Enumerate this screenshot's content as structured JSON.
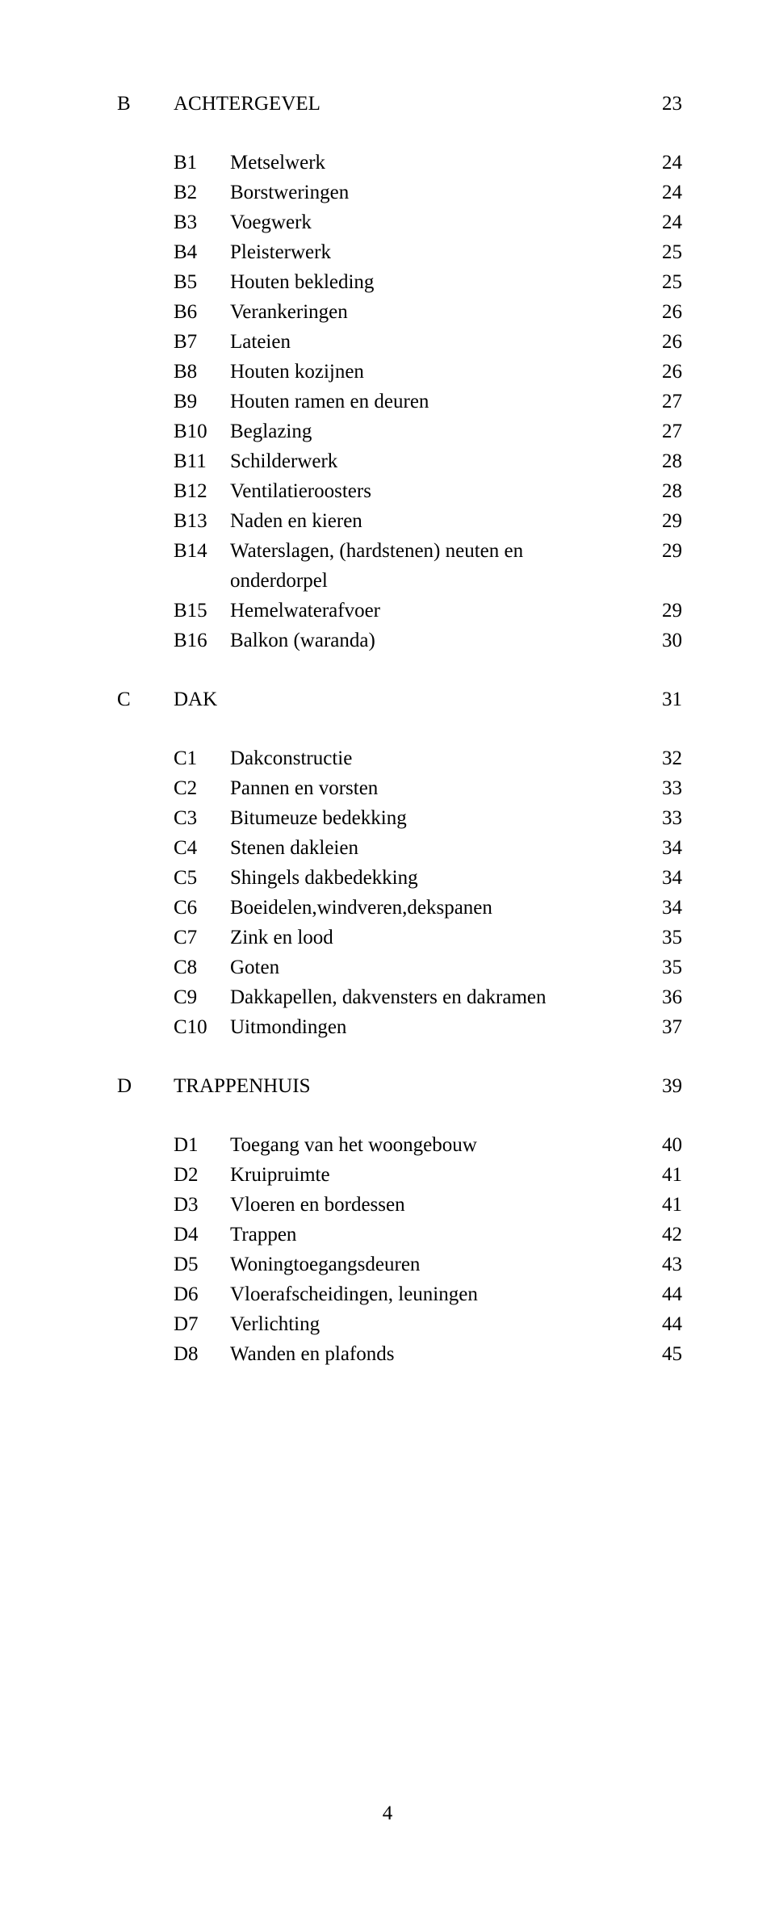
{
  "sections": [
    {
      "code": "B",
      "title": "ACHTERGEVEL",
      "page": "23",
      "items": [
        {
          "code": "B1",
          "label": "Metselwerk",
          "page": "24"
        },
        {
          "code": "B2",
          "label": "Borstweringen",
          "page": "24"
        },
        {
          "code": "B3",
          "label": "Voegwerk",
          "page": "24"
        },
        {
          "code": "B4",
          "label": "Pleisterwerk",
          "page": "25"
        },
        {
          "code": "B5",
          "label": "Houten bekleding",
          "page": "25"
        },
        {
          "code": "B6",
          "label": "Verankeringen",
          "page": "26"
        },
        {
          "code": "B7",
          "label": "Lateien",
          "page": "26"
        },
        {
          "code": "B8",
          "label": "Houten kozijnen",
          "page": "26"
        },
        {
          "code": "B9",
          "label": "Houten ramen en deuren",
          "page": "27"
        },
        {
          "code": "B10",
          "label": "Beglazing",
          "page": "27"
        },
        {
          "code": "B11",
          "label": "Schilderwerk",
          "page": "28"
        },
        {
          "code": "B12",
          "label": "Ventilatieroosters",
          "page": "28"
        },
        {
          "code": "B13",
          "label": "Naden en kieren",
          "page": "29"
        },
        {
          "code": "B14",
          "label": "Waterslagen, (hardstenen) neuten en onderdorpel",
          "page": "29"
        },
        {
          "code": "B15",
          "label": "Hemelwaterafvoer",
          "page": "29"
        },
        {
          "code": "B16",
          "label": "Balkon (waranda)",
          "page": "30"
        }
      ]
    },
    {
      "code": "C",
      "title": "DAK",
      "page": "31",
      "items": [
        {
          "code": "C1",
          "label": "Dakconstructie",
          "page": "32"
        },
        {
          "code": "C2",
          "label": "Pannen en vorsten",
          "page": "33"
        },
        {
          "code": "C3",
          "label": "Bitumeuze bedekking",
          "page": "33"
        },
        {
          "code": "C4",
          "label": "Stenen dakleien",
          "page": "34"
        },
        {
          "code": "C5",
          "label": "Shingels dakbedekking",
          "page": "34"
        },
        {
          "code": "C6",
          "label": "Boeidelen,windveren,dekspanen",
          "page": "34"
        },
        {
          "code": "C7",
          "label": "Zink en lood",
          "page": "35"
        },
        {
          "code": "C8",
          "label": "Goten",
          "page": "35"
        },
        {
          "code": "C9",
          "label": "Dakkapellen, dakvensters en dakramen",
          "page": "36"
        },
        {
          "code": "C10",
          "label": "Uitmondingen",
          "page": "37"
        }
      ]
    },
    {
      "code": "D",
      "title": "TRAPPENHUIS",
      "page": "39",
      "items": [
        {
          "code": "D1",
          "label": "Toegang van het woongebouw",
          "page": "40"
        },
        {
          "code": "D2",
          "label": "Kruipruimte",
          "page": "41"
        },
        {
          "code": "D3",
          "label": "Vloeren en bordessen",
          "page": "41"
        },
        {
          "code": "D4",
          "label": "Trappen",
          "page": "42"
        },
        {
          "code": "D5",
          "label": "Woningtoegangsdeuren",
          "page": "43"
        },
        {
          "code": "D6",
          "label": "Vloerafscheidingen, leuningen",
          "page": "44"
        },
        {
          "code": "D7",
          "label": "Verlichting",
          "page": "44"
        },
        {
          "code": "D8",
          "label": "Wanden en plafonds",
          "page": "45"
        }
      ]
    }
  ],
  "footer": "4"
}
